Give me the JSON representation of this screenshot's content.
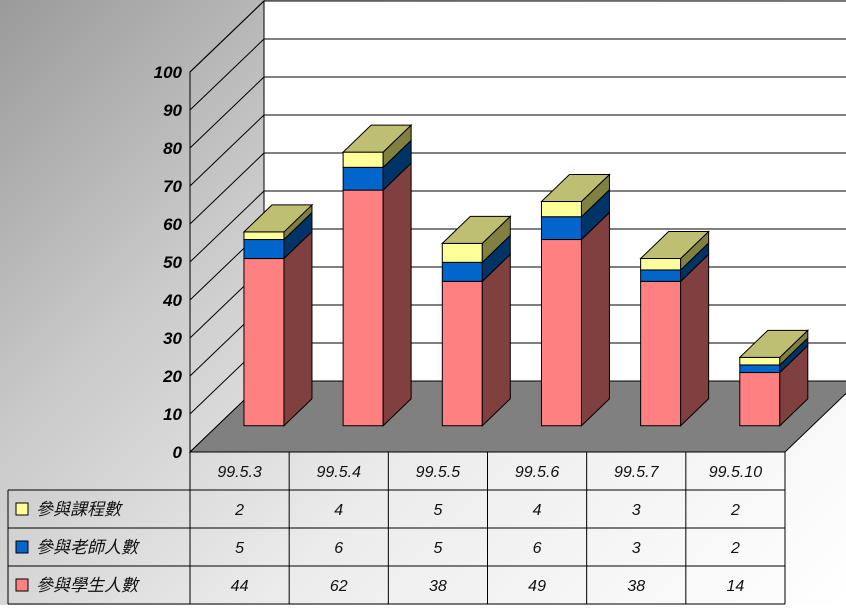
{
  "chart_data": {
    "type": "bar",
    "stacked": true,
    "three_d": true,
    "categories": [
      "99.5.3",
      "99.5.4",
      "99.5.5",
      "99.5.6",
      "99.5.7",
      "99.5.10"
    ],
    "series": [
      {
        "name": "參與學生人數",
        "values": [
          44,
          62,
          38,
          49,
          38,
          14
        ],
        "color": "#ff8080",
        "side_color": "#804040",
        "top_color": "#ffbfbf"
      },
      {
        "name": "參與老師人數",
        "values": [
          5,
          6,
          5,
          6,
          3,
          2
        ],
        "color": "#0066cc",
        "side_color": "#003366",
        "top_color": "#3399ff"
      },
      {
        "name": "參與課程數",
        "values": [
          2,
          4,
          5,
          4,
          3,
          2
        ],
        "color": "#ffff99",
        "side_color": "#808040",
        "top_color": "#bfbf73"
      }
    ],
    "ylim": [
      0,
      100
    ],
    "yticks": [
      "0",
      "10",
      "20",
      "30",
      "40",
      "50",
      "60",
      "70",
      "80",
      "90",
      "100"
    ],
    "grid": true,
    "data_table": true,
    "legend": "in data table",
    "table_row_order": [
      2,
      1,
      0
    ]
  }
}
